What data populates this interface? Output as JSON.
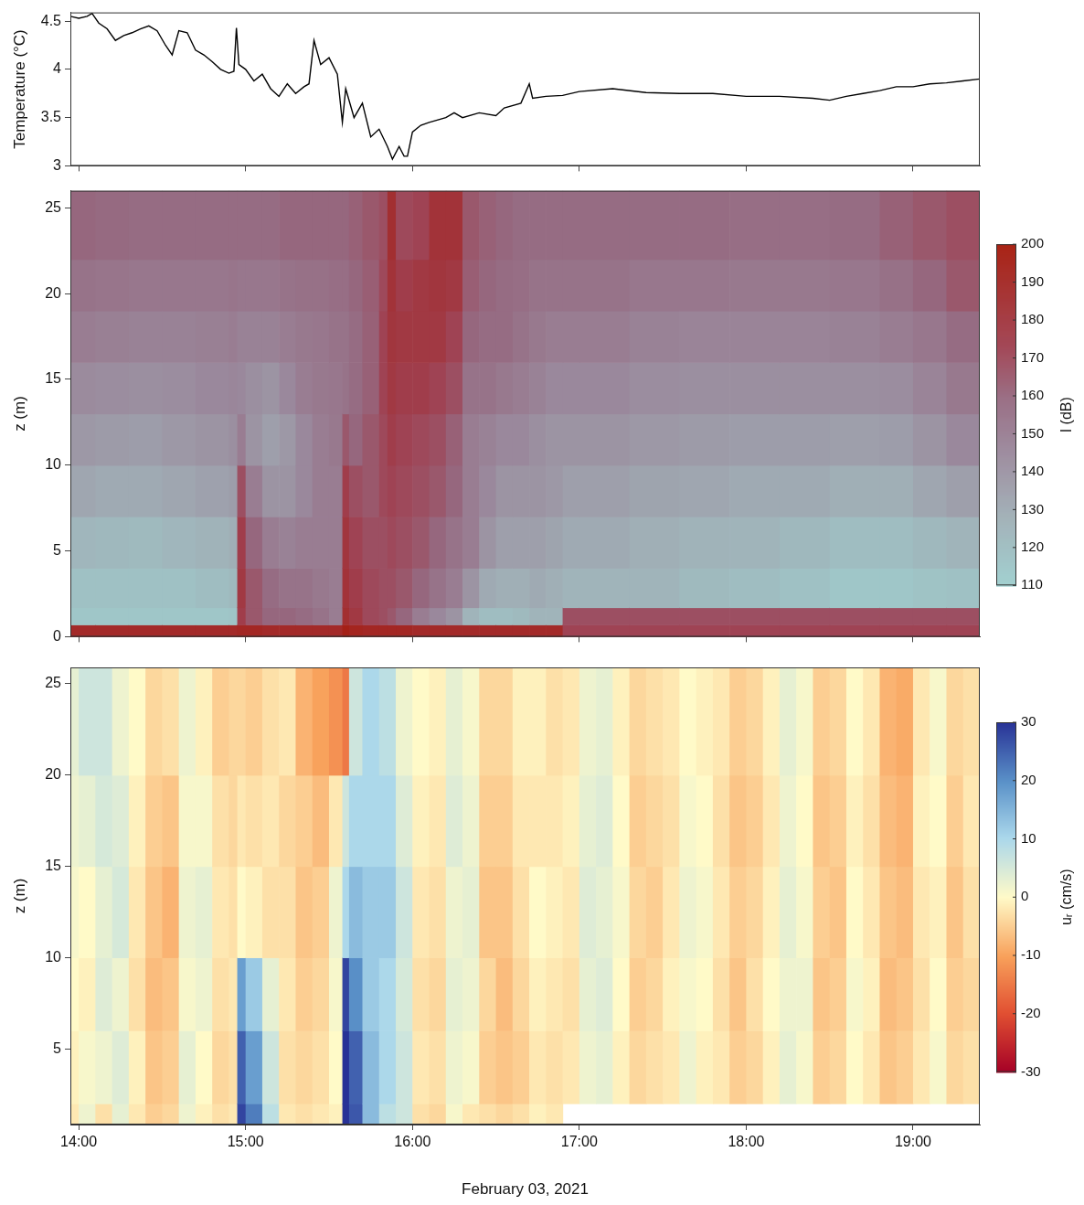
{
  "chart_data": [
    {
      "type": "line",
      "x": [
        13.95,
        14.0,
        14.05,
        14.08,
        14.12,
        14.17,
        14.22,
        14.27,
        14.32,
        14.37,
        14.42,
        14.47,
        14.52,
        14.56,
        14.6,
        14.65,
        14.7,
        14.75,
        14.8,
        14.85,
        14.9,
        14.93,
        14.945,
        14.96,
        15.0,
        15.05,
        15.1,
        15.15,
        15.2,
        15.25,
        15.3,
        15.35,
        15.38,
        15.41,
        15.45,
        15.5,
        15.55,
        15.58,
        15.6,
        15.65,
        15.7,
        15.75,
        15.8,
        15.85,
        15.88,
        15.92,
        15.95,
        15.97,
        16.0,
        16.05,
        16.1,
        16.2,
        16.25,
        16.3,
        16.4,
        16.5,
        16.55,
        16.65,
        16.7,
        16.72,
        16.8,
        16.9,
        17.0,
        17.2,
        17.4,
        17.6,
        17.8,
        18.0,
        18.2,
        18.4,
        18.5,
        18.6,
        18.7,
        18.8,
        18.9,
        19.0,
        19.1,
        19.2,
        19.3,
        19.4
      ],
      "values": [
        4.55,
        4.53,
        4.55,
        4.58,
        4.48,
        4.42,
        4.3,
        4.35,
        4.38,
        4.42,
        4.45,
        4.4,
        4.25,
        4.15,
        4.4,
        4.38,
        4.2,
        4.15,
        4.08,
        4.0,
        3.96,
        3.98,
        4.43,
        4.05,
        4.0,
        3.88,
        3.95,
        3.8,
        3.72,
        3.85,
        3.75,
        3.82,
        3.85,
        4.3,
        4.05,
        4.12,
        3.95,
        3.45,
        3.8,
        3.5,
        3.65,
        3.3,
        3.38,
        3.2,
        3.07,
        3.2,
        3.1,
        3.1,
        3.35,
        3.42,
        3.45,
        3.5,
        3.55,
        3.5,
        3.55,
        3.52,
        3.6,
        3.65,
        3.85,
        3.7,
        3.72,
        3.73,
        3.77,
        3.8,
        3.76,
        3.75,
        3.75,
        3.72,
        3.72,
        3.7,
        3.68,
        3.72,
        3.75,
        3.78,
        3.82,
        3.82,
        3.85,
        3.86,
        3.88,
        3.9
      ],
      "color": "#000000",
      "xlim": [
        13.95,
        19.4
      ],
      "xticks": [
        14,
        15,
        16,
        17,
        18,
        19
      ],
      "ylim": [
        3,
        4.59
      ],
      "yticks": [
        3,
        3.5,
        4,
        4.5
      ],
      "y_label": "Temperature (°C)",
      "grid": false,
      "tick_labels": "y"
    },
    {
      "type": "heatmap",
      "x_edges": [
        13.95,
        14.1,
        14.3,
        14.5,
        14.7,
        14.9,
        14.95,
        15.0,
        15.1,
        15.2,
        15.3,
        15.4,
        15.5,
        15.58,
        15.62,
        15.7,
        15.8,
        15.85,
        15.9,
        16.0,
        16.1,
        16.2,
        16.3,
        16.4,
        16.5,
        16.6,
        16.7,
        16.8,
        16.9,
        17.0,
        17.3,
        17.6,
        17.9,
        18.2,
        18.5,
        18.8,
        19.0,
        19.2,
        19.4
      ],
      "y_edges": [
        0,
        0.7,
        1.7,
        4,
        7,
        10,
        13,
        16,
        19,
        22,
        26
      ],
      "cells": [
        [
          188,
          115,
          118,
          124,
          132,
          138,
          144,
          150,
          155,
          160
        ],
        [
          188,
          115,
          118,
          123,
          130,
          137,
          143,
          149,
          154,
          159
        ],
        [
          188,
          115,
          118,
          122,
          130,
          136,
          142,
          148,
          153,
          158
        ],
        [
          188,
          115,
          118,
          124,
          132,
          138,
          143,
          148,
          153,
          158
        ],
        [
          188,
          115,
          120,
          126,
          134,
          140,
          145,
          149,
          153,
          158
        ],
        [
          188,
          116,
          122,
          128,
          136,
          142,
          146,
          150,
          154,
          158
        ],
        [
          190,
          175,
          178,
          175,
          168,
          150,
          145,
          148,
          153,
          158
        ],
        [
          190,
          165,
          165,
          160,
          150,
          140,
          142,
          148,
          153,
          158
        ],
        [
          188,
          160,
          158,
          150,
          140,
          135,
          140,
          148,
          153,
          158
        ],
        [
          188,
          160,
          155,
          148,
          140,
          138,
          145,
          150,
          155,
          160
        ],
        [
          188,
          158,
          155,
          150,
          145,
          145,
          150,
          152,
          156,
          160
        ],
        [
          188,
          155,
          152,
          150,
          150,
          150,
          152,
          153,
          156,
          160
        ],
        [
          188,
          150,
          150,
          150,
          150,
          152,
          153,
          155,
          157,
          160
        ],
        [
          195,
          185,
          182,
          180,
          175,
          165,
          155,
          155,
          157,
          160
        ],
        [
          192,
          178,
          175,
          172,
          168,
          160,
          158,
          158,
          160,
          162
        ],
        [
          190,
          170,
          170,
          168,
          165,
          165,
          162,
          162,
          163,
          165
        ],
        [
          190,
          168,
          168,
          168,
          170,
          170,
          172,
          172,
          170,
          168
        ],
        [
          190,
          165,
          168,
          170,
          172,
          175,
          178,
          180,
          182,
          185
        ],
        [
          190,
          160,
          165,
          168,
          170,
          172,
          175,
          178,
          175,
          170
        ],
        [
          188,
          150,
          160,
          165,
          168,
          170,
          175,
          178,
          178,
          172
        ],
        [
          188,
          145,
          155,
          160,
          165,
          168,
          172,
          178,
          180,
          182
        ],
        [
          188,
          140,
          150,
          155,
          160,
          162,
          168,
          172,
          178,
          182
        ],
        [
          188,
          125,
          140,
          150,
          150,
          150,
          155,
          160,
          163,
          165
        ],
        [
          188,
          120,
          130,
          140,
          145,
          148,
          155,
          158,
          160,
          162
        ],
        [
          188,
          120,
          128,
          135,
          140,
          145,
          152,
          158,
          158,
          160
        ],
        [
          188,
          122,
          128,
          135,
          140,
          145,
          150,
          155,
          157,
          158
        ],
        [
          188,
          125,
          130,
          135,
          140,
          142,
          148,
          152,
          155,
          158
        ],
        [
          188,
          125,
          128,
          133,
          138,
          140,
          145,
          150,
          155,
          158
        ],
        [
          172,
          168,
          125,
          130,
          135,
          140,
          145,
          150,
          155,
          158
        ],
        [
          172,
          168,
          125,
          130,
          135,
          140,
          145,
          150,
          155,
          158
        ],
        [
          172,
          168,
          125,
          128,
          133,
          138,
          143,
          148,
          153,
          158
        ],
        [
          172,
          168,
          122,
          126,
          132,
          137,
          142,
          147,
          153,
          158
        ],
        [
          172,
          168,
          120,
          125,
          130,
          136,
          142,
          147,
          152,
          157
        ],
        [
          172,
          168,
          118,
          123,
          130,
          136,
          142,
          147,
          152,
          157
        ],
        [
          172,
          168,
          115,
          120,
          128,
          135,
          142,
          148,
          153,
          158
        ],
        [
          172,
          168,
          115,
          120,
          128,
          136,
          143,
          150,
          156,
          162
        ],
        [
          172,
          168,
          117,
          123,
          132,
          140,
          147,
          153,
          160,
          165
        ],
        [
          172,
          168,
          118,
          125,
          135,
          145,
          152,
          158,
          165,
          168
        ]
      ],
      "colorbar": {
        "label": "I (dB)",
        "range": [
          110,
          200
        ],
        "ticks": [
          110,
          120,
          130,
          140,
          150,
          160,
          170,
          180,
          190,
          200
        ]
      },
      "xlim": [
        13.95,
        19.4
      ],
      "xticks": [
        14,
        15,
        16,
        17,
        18,
        19
      ],
      "ylim": [
        0,
        26
      ],
      "yticks": [
        0,
        5,
        10,
        15,
        20,
        25
      ],
      "y_label": "z (m)",
      "grid": false,
      "tick_labels": "y"
    },
    {
      "type": "heatmap",
      "x_edges": [
        13.95,
        14.0,
        14.1,
        14.2,
        14.3,
        14.4,
        14.5,
        14.6,
        14.7,
        14.8,
        14.9,
        14.95,
        15.0,
        15.1,
        15.2,
        15.3,
        15.4,
        15.5,
        15.58,
        15.62,
        15.7,
        15.8,
        15.9,
        16.0,
        16.1,
        16.2,
        16.3,
        16.4,
        16.5,
        16.6,
        16.7,
        16.8,
        16.9,
        17.0,
        17.1,
        17.2,
        17.3,
        17.4,
        17.5,
        17.6,
        17.7,
        17.8,
        17.9,
        18.0,
        18.1,
        18.2,
        18.3,
        18.4,
        18.5,
        18.6,
        18.7,
        18.8,
        18.9,
        19.0,
        19.1,
        19.2,
        19.3,
        19.4
      ],
      "y_edges": [
        0.9,
        2,
        6,
        10,
        15,
        20,
        25.9
      ],
      "cells": [
        [
          -2,
          -1,
          0,
          1,
          2,
          3
        ],
        [
          2,
          1,
          -1,
          0,
          3,
          6
        ],
        [
          -3,
          2,
          4,
          3,
          5,
          6
        ],
        [
          3,
          4,
          2,
          5,
          4,
          2
        ],
        [
          -2,
          -1,
          -3,
          -2,
          -1,
          0
        ],
        [
          -5,
          -6,
          -7,
          -6,
          -5,
          -4
        ],
        [
          -4,
          -5,
          -6,
          -8,
          -6,
          -3
        ],
        [
          2,
          3,
          1,
          2,
          1,
          2
        ],
        [
          -1,
          0,
          2,
          3,
          1,
          -1
        ],
        [
          -3,
          -4,
          -3,
          -2,
          -3,
          -5
        ],
        [
          -2,
          -3,
          -2,
          -3,
          -4,
          -4
        ],
        [
          28,
          25,
          18,
          0,
          -2,
          -4
        ],
        [
          22,
          18,
          12,
          -1,
          -3,
          -5
        ],
        [
          8,
          6,
          3,
          -3,
          -2,
          -3
        ],
        [
          -2,
          -3,
          -2,
          -3,
          -4,
          -2
        ],
        [
          -3,
          -4,
          -5,
          -6,
          -5,
          -8
        ],
        [
          -2,
          -3,
          -4,
          -5,
          -7,
          -10
        ],
        [
          -1,
          0,
          1,
          2,
          -2,
          -12
        ],
        [
          30,
          30,
          28,
          10,
          6,
          -15
        ],
        [
          26,
          25,
          20,
          14,
          10,
          6
        ],
        [
          14,
          14,
          12,
          12,
          10,
          10
        ],
        [
          8,
          10,
          10,
          12,
          10,
          8
        ],
        [
          6,
          6,
          5,
          6,
          4,
          2
        ],
        [
          -3,
          -2,
          -3,
          -2,
          -1,
          0
        ],
        [
          -4,
          -3,
          -4,
          -3,
          -2,
          -1
        ],
        [
          1,
          2,
          3,
          2,
          4,
          3
        ],
        [
          -2,
          1,
          2,
          3,
          2,
          1
        ],
        [
          -3,
          -5,
          -4,
          -6,
          -5,
          -4
        ],
        [
          -4,
          -6,
          -7,
          -6,
          -5,
          -4
        ],
        [
          -3,
          -5,
          -4,
          -3,
          -2,
          -1
        ],
        [
          -1,
          -2,
          -1,
          0,
          -2,
          -1
        ],
        [
          -2,
          -3,
          -2,
          -1,
          -2,
          -3
        ],
        [
          null,
          -2,
          -3,
          -2,
          -1,
          -2
        ],
        [
          null,
          2,
          3,
          4,
          3,
          2
        ],
        [
          null,
          3,
          4,
          3,
          4,
          3
        ],
        [
          null,
          -1,
          0,
          1,
          0,
          -1
        ],
        [
          null,
          -4,
          -5,
          -4,
          -5,
          -4
        ],
        [
          null,
          -3,
          -4,
          -5,
          -4,
          -3
        ],
        [
          null,
          -2,
          -1,
          -2,
          -3,
          -2
        ],
        [
          null,
          2,
          1,
          2,
          1,
          0
        ],
        [
          null,
          -1,
          0,
          1,
          0,
          -1
        ],
        [
          null,
          -2,
          -3,
          -2,
          -3,
          -2
        ],
        [
          null,
          -5,
          -6,
          -5,
          -6,
          -5
        ],
        [
          null,
          -4,
          -3,
          -4,
          -5,
          -4
        ],
        [
          null,
          -1,
          0,
          -1,
          -2,
          -1
        ],
        [
          null,
          3,
          2,
          3,
          2,
          3
        ],
        [
          null,
          1,
          2,
          1,
          0,
          1
        ],
        [
          null,
          -5,
          -6,
          -5,
          -6,
          -5
        ],
        [
          null,
          -4,
          -5,
          -6,
          -5,
          -4
        ],
        [
          null,
          0,
          1,
          0,
          -1,
          0
        ],
        [
          null,
          -2,
          -1,
          -2,
          -3,
          -2
        ],
        [
          null,
          -6,
          -7,
          -6,
          -7,
          -8
        ],
        [
          null,
          -5,
          -6,
          -7,
          -8,
          -9
        ],
        [
          null,
          -2,
          -3,
          -2,
          -1,
          -2
        ],
        [
          null,
          1,
          0,
          -1,
          0,
          1
        ],
        [
          null,
          -4,
          -5,
          -6,
          -5,
          -4
        ],
        [
          null,
          -3,
          -4,
          -3,
          -2,
          -3
        ]
      ],
      "colorbar": {
        "label": "uᵣ (cm/s)",
        "range": [
          -30,
          30
        ],
        "ticks": [
          -30,
          -20,
          -10,
          0,
          10,
          20,
          30
        ]
      },
      "xlim": [
        13.95,
        19.4
      ],
      "xticks": [
        {
          "value": 14,
          "label": "14:00"
        },
        {
          "value": 15,
          "label": "15:00"
        },
        {
          "value": 16,
          "label": "16:00"
        },
        {
          "value": 17,
          "label": "17:00"
        },
        {
          "value": 18,
          "label": "18:00"
        },
        {
          "value": 19,
          "label": "19:00"
        }
      ],
      "x_label": "February 03, 2021",
      "ylim": [
        0.85,
        25.9
      ],
      "yticks": [
        5,
        10,
        15,
        20,
        25
      ],
      "y_label": "z (m)",
      "grid": false
    }
  ]
}
